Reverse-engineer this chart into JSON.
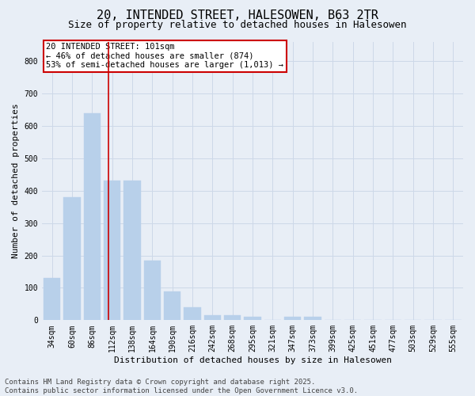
{
  "title": "20, INTENDED STREET, HALESOWEN, B63 2TR",
  "subtitle": "Size of property relative to detached houses in Halesowen",
  "xlabel": "Distribution of detached houses by size in Halesowen",
  "ylabel": "Number of detached properties",
  "categories": [
    "34sqm",
    "60sqm",
    "86sqm",
    "112sqm",
    "138sqm",
    "164sqm",
    "190sqm",
    "216sqm",
    "242sqm",
    "268sqm",
    "295sqm",
    "321sqm",
    "347sqm",
    "373sqm",
    "399sqm",
    "425sqm",
    "451sqm",
    "477sqm",
    "503sqm",
    "529sqm",
    "555sqm"
  ],
  "values": [
    130,
    380,
    640,
    430,
    430,
    185,
    90,
    40,
    15,
    15,
    10,
    0,
    10,
    10,
    0,
    0,
    0,
    0,
    0,
    0,
    0
  ],
  "bar_color": "#b8d0ea",
  "grid_color": "#cdd8e8",
  "background_color": "#e8eef6",
  "red_line_x": 2.82,
  "annotation_text": "20 INTENDED STREET: 101sqm\n← 46% of detached houses are smaller (874)\n53% of semi-detached houses are larger (1,013) →",
  "annotation_box_color": "#ffffff",
  "annotation_border_color": "#cc0000",
  "footer_text": "Contains HM Land Registry data © Crown copyright and database right 2025.\nContains public sector information licensed under the Open Government Licence v3.0.",
  "ylim": [
    0,
    860
  ],
  "yticks": [
    0,
    100,
    200,
    300,
    400,
    500,
    600,
    700,
    800
  ],
  "title_fontsize": 11,
  "subtitle_fontsize": 9,
  "axis_label_fontsize": 8,
  "tick_fontsize": 7,
  "annotation_fontsize": 7.5,
  "footer_fontsize": 6.5
}
